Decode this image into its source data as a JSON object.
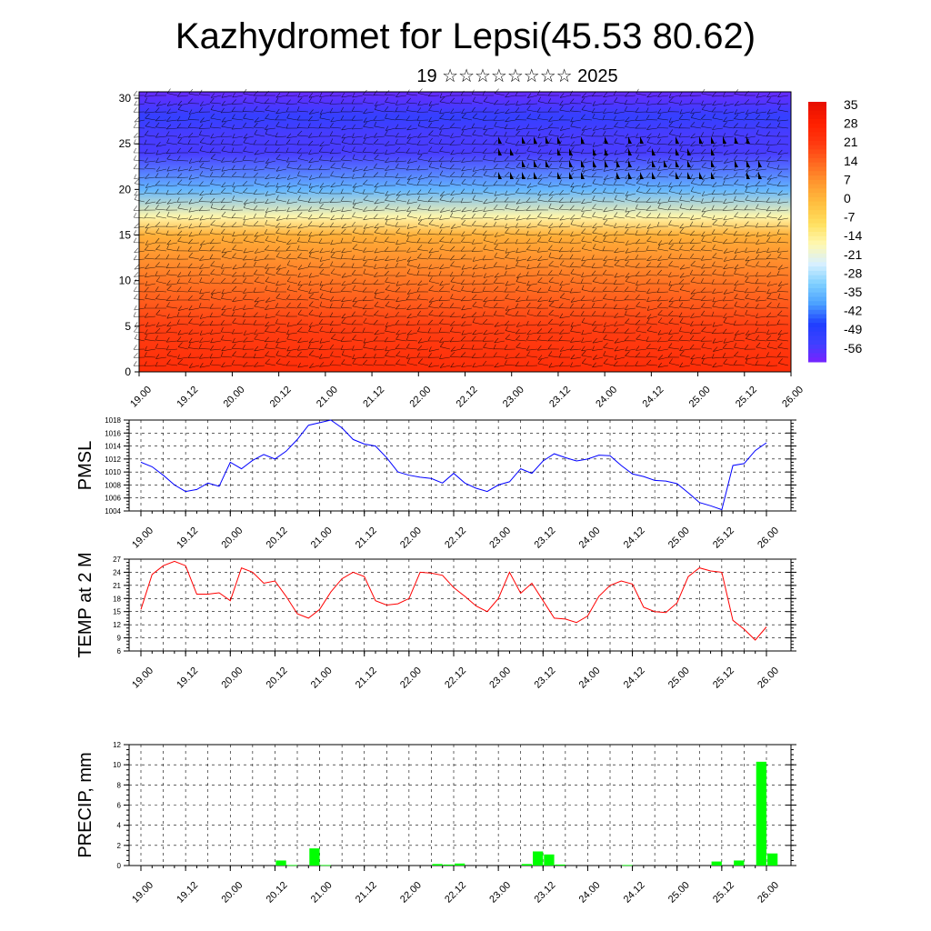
{
  "title": "Kazhydromet for Lepsi(45.53 80.62)",
  "subtitle": "19 ☆☆☆☆☆☆☆☆ 2025",
  "colors": {
    "pmsl": "#0000ff",
    "temp": "#ff0000",
    "precip": "#00ff00",
    "grid": "#000000",
    "wind_barb": "#000000"
  },
  "chart_data": [
    {
      "type": "heatmap",
      "name": "vertical-temperature-section",
      "x_tick_labels": [
        "19.00",
        "19.12",
        "20.00",
        "20.12",
        "21.00",
        "21.12",
        "22.00",
        "22.12",
        "23.00",
        "23.12",
        "24.00",
        "24.12",
        "25.00",
        "25.12",
        "26.00"
      ],
      "y_ticks": [
        0,
        5,
        10,
        15,
        20,
        25,
        30
      ],
      "ylim": [
        0,
        30.7
      ],
      "colorbar_labels": [
        "35",
        "28",
        "21",
        "14",
        "7",
        "0",
        "-7",
        "-14",
        "-21",
        "-28",
        "-35",
        "-42",
        "-49",
        "-56"
      ],
      "colorbar_range": [
        -63,
        42
      ],
      "colormap": [
        "#7f1fff",
        "#4040ff",
        "#1f3fff",
        "#4aa0ff",
        "#7fd0ff",
        "#d8f0ff",
        "#fff8b0",
        "#ffe060",
        "#ffc040",
        "#ff9a30",
        "#ff6a20",
        "#ff3a10",
        "#ff2000",
        "#e81000"
      ],
      "overlay": "wind barbs"
    },
    {
      "type": "line",
      "name": "PMSL",
      "ylabel": "PMSL",
      "ylim": [
        1004,
        1018
      ],
      "y_ticks": [
        1004,
        1006,
        1008,
        1010,
        1012,
        1014,
        1016,
        1018
      ],
      "x_tick_labels": [
        "19.00",
        "19.12",
        "20.00",
        "20.12",
        "21.00",
        "21.12",
        "22.00",
        "22.12",
        "23.00",
        "23.12",
        "24.00",
        "24.12",
        "25.00",
        "25.12",
        "26.00"
      ],
      "x_step_hours": 3,
      "values": [
        1011.5,
        1010.8,
        1009.5,
        1008.0,
        1007.0,
        1007.3,
        1008.3,
        1007.8,
        1011.5,
        1010.5,
        1011.8,
        1012.7,
        1012.0,
        1013.2,
        1015.0,
        1017.2,
        1017.6,
        1018.0,
        1016.8,
        1015.0,
        1014.3,
        1014.0,
        1012.2,
        1010.0,
        1009.5,
        1009.2,
        1009.0,
        1008.3,
        1009.8,
        1008.3,
        1007.5,
        1007.0,
        1008.0,
        1008.5,
        1010.5,
        1009.8,
        1011.7,
        1012.8,
        1012.2,
        1011.7,
        1012.0,
        1012.6,
        1012.5,
        1011.0,
        1009.7,
        1009.3,
        1008.7,
        1008.6,
        1008.2,
        1006.8,
        1005.3,
        1004.8,
        1004.2,
        1011.0,
        1011.3,
        1013.3,
        1014.5
      ]
    },
    {
      "type": "line",
      "name": "TEMP at 2 M",
      "ylabel": "TEMP at 2 M",
      "ylim": [
        6,
        27
      ],
      "y_ticks": [
        6,
        9,
        12,
        15,
        18,
        21,
        24,
        27
      ],
      "x_tick_labels": [
        "19.00",
        "19.12",
        "20.00",
        "20.12",
        "21.00",
        "21.12",
        "22.00",
        "22.12",
        "23.00",
        "23.12",
        "24.00",
        "24.12",
        "25.00",
        "25.12",
        "26.00"
      ],
      "x_step_hours": 3,
      "values": [
        15.5,
        23.5,
        25.5,
        26.5,
        25.5,
        19.0,
        19.0,
        19.3,
        17.5,
        25.0,
        24.0,
        21.5,
        22.0,
        18.5,
        14.5,
        13.5,
        15.5,
        19.5,
        22.5,
        24.0,
        23.0,
        17.5,
        16.5,
        16.8,
        18.0,
        24.0,
        23.8,
        23.3,
        20.5,
        18.5,
        16.3,
        15.0,
        18.0,
        24.0,
        19.2,
        21.5,
        17.5,
        13.5,
        13.3,
        12.5,
        14.0,
        18.5,
        21.0,
        22.0,
        21.3,
        16.0,
        15.0,
        14.8,
        17.0,
        23.0,
        25.0,
        24.3,
        24.0,
        13.0,
        11.0,
        8.5,
        11.5
      ]
    },
    {
      "type": "bar",
      "name": "PRECIP",
      "ylabel": "PRECIP, mm",
      "ylim": [
        0,
        12
      ],
      "y_ticks": [
        0,
        2,
        4,
        6,
        8,
        10,
        12
      ],
      "x_tick_labels": [
        "19.00",
        "19.12",
        "20.00",
        "20.12",
        "21.00",
        "21.12",
        "22.00",
        "22.12",
        "23.00",
        "23.12",
        "24.00",
        "24.12",
        "25.00",
        "25.12",
        "26.00"
      ],
      "x_step_hours": 3,
      "values": [
        0,
        0,
        0,
        0,
        0,
        0,
        0,
        0,
        0,
        0,
        0,
        0,
        0.5,
        0.05,
        0,
        1.7,
        0.05,
        0,
        0,
        0,
        0,
        0,
        0,
        0,
        0,
        0,
        0.15,
        0.1,
        0.2,
        0,
        0,
        0,
        0,
        0,
        0.15,
        1.4,
        1.1,
        0.1,
        0,
        0,
        0,
        0,
        0,
        0.05,
        0,
        0,
        0,
        0,
        0,
        0,
        0,
        0.4,
        0,
        0.5,
        0,
        10.3,
        1.2
      ]
    }
  ]
}
